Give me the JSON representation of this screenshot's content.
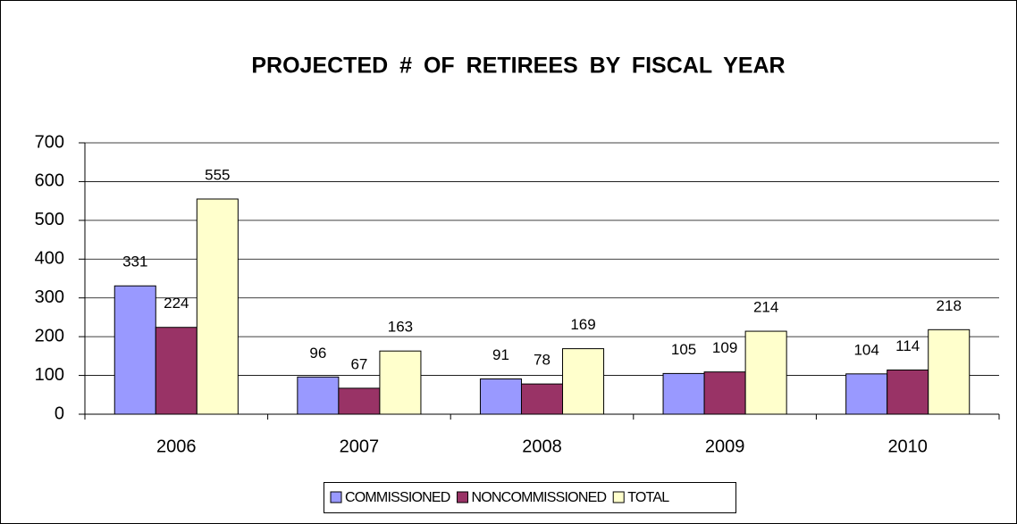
{
  "chart_data": {
    "type": "bar",
    "title": "PROJECTED # OF RETIREES BY FISCAL YEAR",
    "categories": [
      "2006",
      "2007",
      "2008",
      "2009",
      "2010"
    ],
    "series": [
      {
        "name": "COMMISSIONED",
        "color": "#9999ff",
        "values": [
          331,
          96,
          91,
          105,
          104
        ]
      },
      {
        "name": "NONCOMMISSIONED",
        "color": "#993366",
        "values": [
          224,
          67,
          78,
          109,
          114
        ]
      },
      {
        "name": "TOTAL",
        "color": "#ffffcc",
        "values": [
          555,
          163,
          169,
          214,
          218
        ]
      }
    ],
    "ylim": [
      0,
      700
    ],
    "yticks": [
      0,
      100,
      200,
      300,
      400,
      500,
      600,
      700
    ],
    "grid": true,
    "legend": "bottom"
  }
}
